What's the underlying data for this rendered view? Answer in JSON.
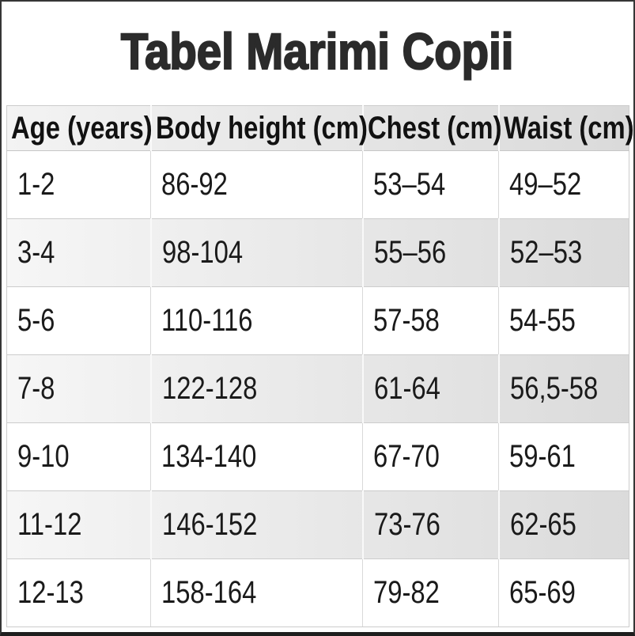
{
  "title": "Tabel Marimi Copii",
  "chart_data": {
    "type": "table",
    "title": "Tabel Marimi Copii",
    "columns": [
      "Age (years)",
      "Body height (cm)",
      "Chest (cm)",
      "Waist (cm)"
    ],
    "rows": [
      [
        "1-2",
        "86-92",
        "53–54",
        "49–52"
      ],
      [
        "3-4",
        "98-104",
        "55–56",
        "52–53"
      ],
      [
        "5-6",
        "110-116",
        "57-58",
        "54-55"
      ],
      [
        "7-8",
        "122-128",
        "61-64",
        "56,5-58"
      ],
      [
        "9-10",
        "134-140",
        "67-70",
        "59-61"
      ],
      [
        "11-12",
        "146-152",
        "73-76",
        "62-65"
      ],
      [
        "12-13",
        "158-164",
        "79-82",
        "65-69"
      ]
    ]
  },
  "colors": {
    "title_text": "#2b2b2b",
    "header_text": "#111111",
    "body_text": "#1a1a1a",
    "stripe_gradient_start": "#f6f6f6",
    "stripe_gradient_end": "#dbdbdb",
    "header_gradient_start": "#f3f3f3",
    "header_gradient_end": "#dadada",
    "grid_line": "#cccccc",
    "frame_border": "#363636"
  }
}
